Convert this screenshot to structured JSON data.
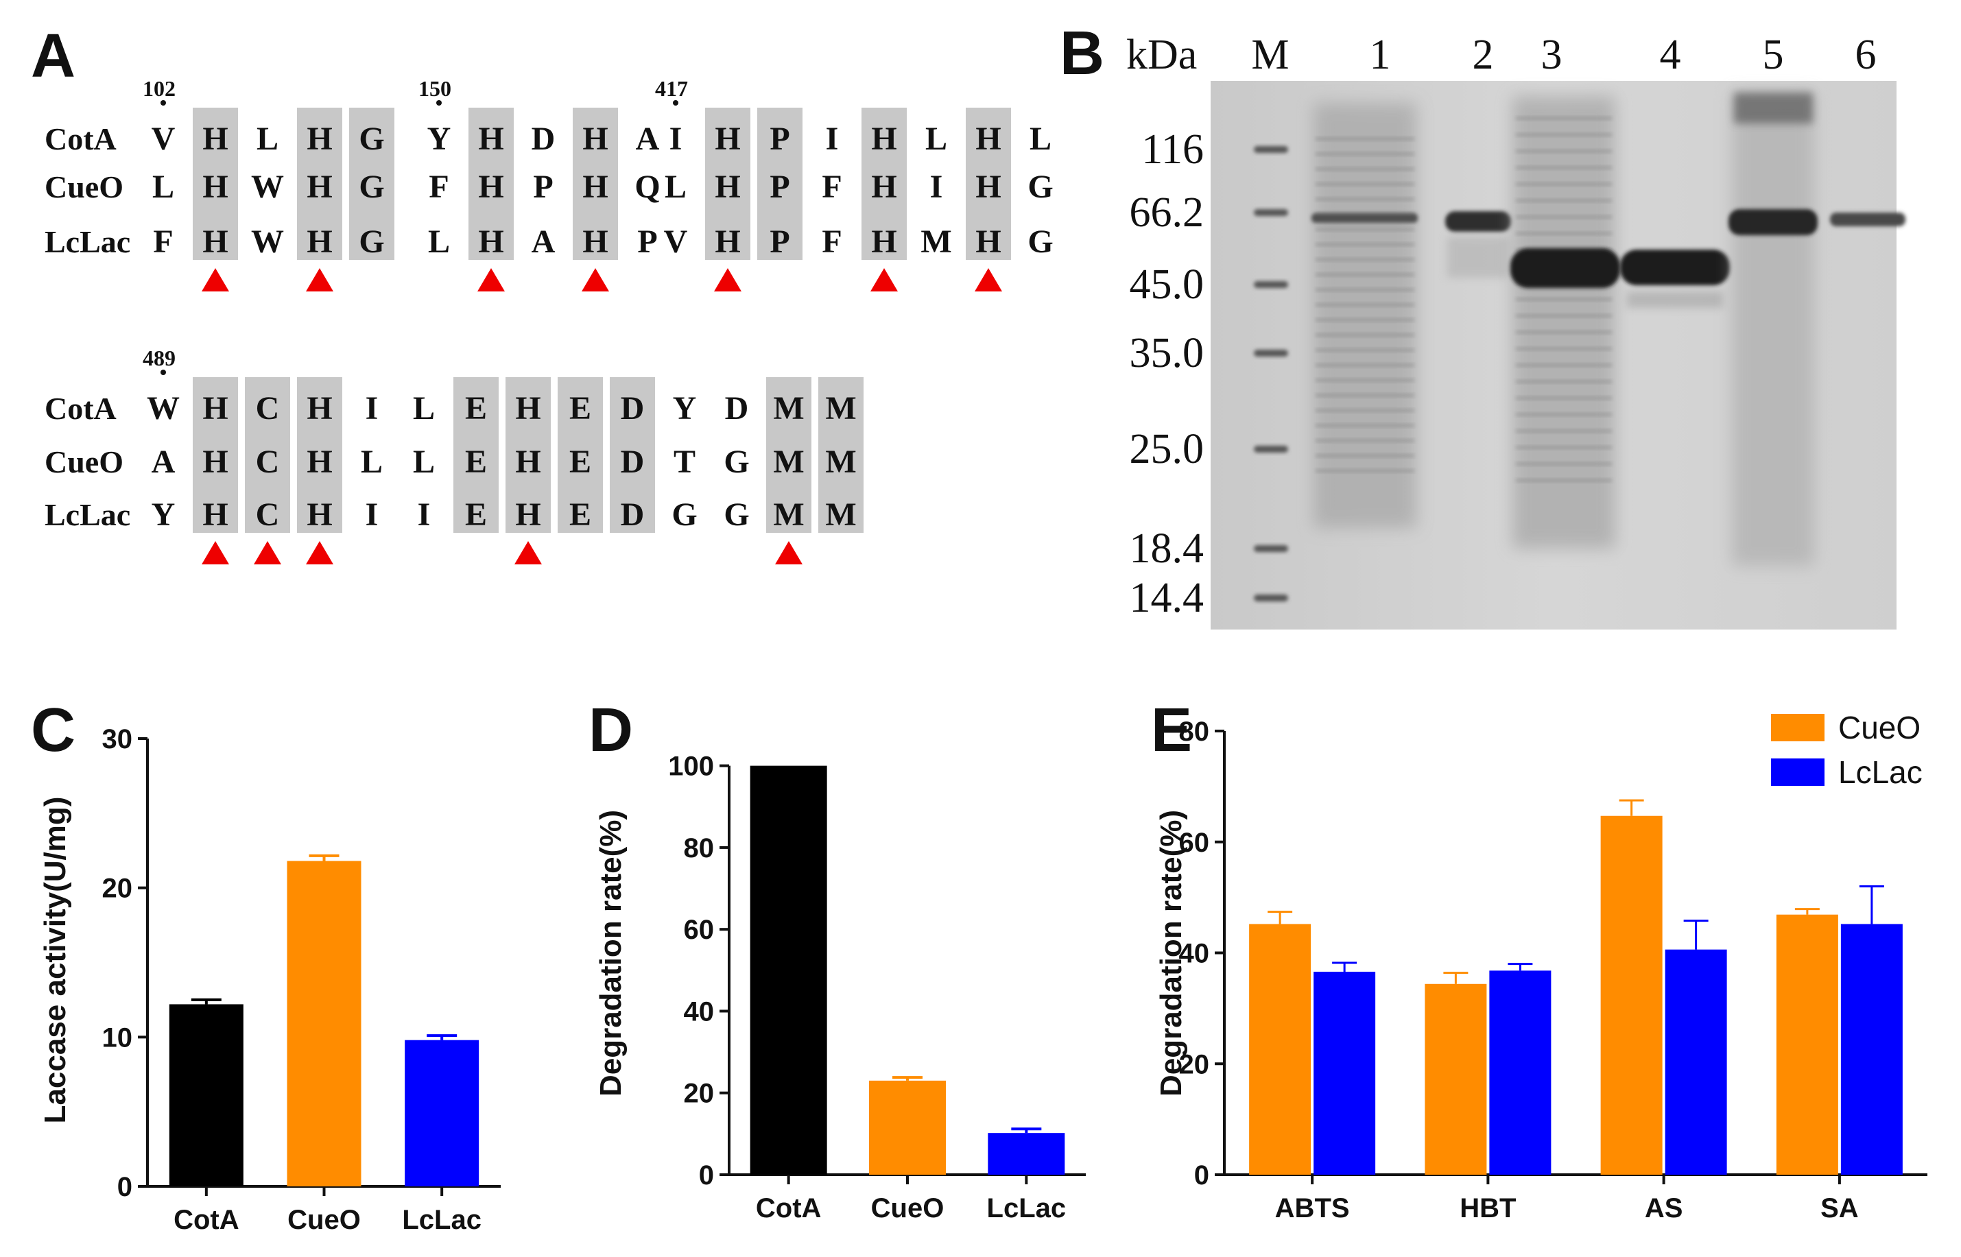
{
  "panels": {
    "A": "A",
    "B": "B",
    "C": "C",
    "D": "D",
    "E": "E"
  },
  "alignment": {
    "names": [
      "CotA",
      "CueO",
      "LcLac"
    ],
    "blocks": [
      {
        "position": "102",
        "rows": [
          [
            "V",
            "H",
            "L",
            "H",
            "G"
          ],
          [
            "L",
            "H",
            "W",
            "H",
            "G"
          ],
          [
            "F",
            "H",
            "W",
            "H",
            "G"
          ]
        ],
        "shaded": [
          1,
          3,
          4
        ],
        "markers": [
          1,
          3
        ]
      },
      {
        "position": "150",
        "rows": [
          [
            "Y",
            "H",
            "D",
            "H",
            "A"
          ],
          [
            "F",
            "H",
            "P",
            "H",
            "Q"
          ],
          [
            "L",
            "H",
            "A",
            "H",
            "P"
          ]
        ],
        "shaded": [
          1,
          3
        ],
        "markers": [
          1,
          3
        ]
      },
      {
        "position": "417",
        "rows": [
          [
            "I",
            "H",
            "P",
            "I",
            "H",
            "L",
            "H",
            "L"
          ],
          [
            "L",
            "H",
            "P",
            "F",
            "H",
            "I",
            "H",
            "G"
          ],
          [
            "V",
            "H",
            "P",
            "F",
            "H",
            "M",
            "H",
            "G"
          ]
        ],
        "shaded": [
          1,
          2,
          4,
          6
        ],
        "markers": [
          1,
          4,
          6
        ]
      },
      {
        "position": "489",
        "rows": [
          [
            "W",
            "H",
            "C",
            "H",
            "I",
            "L",
            "E",
            "H",
            "E",
            "D",
            "Y",
            "D",
            "M",
            "M"
          ],
          [
            "A",
            "H",
            "C",
            "H",
            "L",
            "L",
            "E",
            "H",
            "E",
            "D",
            "T",
            "G",
            "M",
            "M"
          ],
          [
            "Y",
            "H",
            "C",
            "H",
            "I",
            "I",
            "E",
            "H",
            "E",
            "D",
            "G",
            "G",
            "M",
            "M"
          ]
        ],
        "shaded": [
          1,
          2,
          3,
          6,
          7,
          8,
          9,
          12,
          13
        ],
        "markers": [
          1,
          2,
          3,
          7,
          12
        ]
      }
    ]
  },
  "gel": {
    "unit": "kDa",
    "lanes": [
      "M",
      "1",
      "2",
      "3",
      "4",
      "5",
      "6"
    ],
    "markers": [
      "116",
      "66.2",
      "45.0",
      "35.0",
      "25.0",
      "18.4",
      "14.4"
    ]
  },
  "chart_data": [
    {
      "panel": "C",
      "type": "bar",
      "categories": [
        "CotA",
        "CueO",
        "LcLac"
      ],
      "values": [
        12.2,
        21.8,
        9.8
      ],
      "errors": [
        0.3,
        0.35,
        0.3
      ],
      "colors": [
        "#000000",
        "#ff8c00",
        "#0000ff"
      ],
      "ylabel": "Laccase activity(U/mg)",
      "ylim": [
        0,
        30
      ],
      "yticks": [
        "0",
        "10",
        "20",
        "30"
      ]
    },
    {
      "panel": "D",
      "type": "bar",
      "categories": [
        "CotA",
        "CueO",
        "LcLac"
      ],
      "values": [
        100,
        23,
        10.2
      ],
      "errors": [
        0,
        0.8,
        1.0
      ],
      "colors": [
        "#000000",
        "#ff8c00",
        "#0000ff"
      ],
      "ylabel": "Degradation rate(%)",
      "ylim": [
        0,
        110
      ],
      "yticks": [
        "0",
        "20",
        "40",
        "60",
        "80",
        "100"
      ]
    },
    {
      "panel": "E",
      "type": "bar",
      "categories": [
        "ABTS",
        "HBT",
        "AS",
        "SA"
      ],
      "series": [
        {
          "name": "CueO",
          "color": "#ff8c00",
          "values": [
            45.2,
            34.4,
            64.7,
            46.9
          ],
          "errors": [
            2.2,
            2.0,
            2.8,
            1.0
          ]
        },
        {
          "name": "LcLac",
          "color": "#0000ff",
          "values": [
            36.6,
            36.8,
            40.6,
            45.2
          ],
          "errors": [
            1.6,
            1.2,
            5.2,
            6.8
          ]
        }
      ],
      "ylabel": "Degradation rate(%)",
      "ylim": [
        0,
        80
      ],
      "yticks": [
        "0",
        "20",
        "40",
        "60",
        "80"
      ],
      "legend": "top-right"
    }
  ]
}
